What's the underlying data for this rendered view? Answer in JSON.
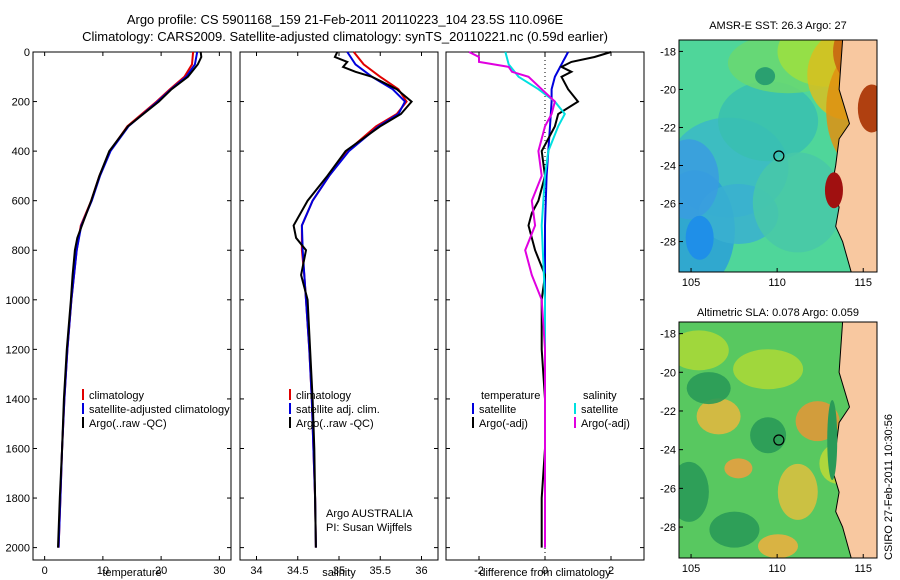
{
  "header": {
    "line1": "Argo profile: CS 5901168_159 21-Feb-2011 20110223_104 23.5S 110.096E",
    "line2": "Climatology: CARS2009. Satellite-adjusted climatology: synTS_20110221.nc (0.59d earlier)"
  },
  "credit": "CSIRO 27-Feb-2011 10:30:56",
  "colors": {
    "clim": "#e00000",
    "sat": "#0000dd",
    "argo": "#000000",
    "sal_sat": "#00e0e0",
    "sal_argo": "#e000e0"
  },
  "chart_data": [
    {
      "type": "line",
      "panel": "temperature",
      "xlabel": "temperature",
      "xlim": [
        -2,
        32
      ],
      "ylim": [
        2050,
        0
      ],
      "xticks": [
        0,
        10,
        20,
        30
      ],
      "yticks": [
        0,
        200,
        400,
        600,
        800,
        1000,
        1200,
        1400,
        1600,
        1800,
        2000
      ],
      "legend": [
        "climatology",
        "satellite-adjusted climatology",
        "Argo(..raw -QC)"
      ],
      "series": [
        {
          "name": "climatology",
          "color": "clim",
          "depth": [
            0,
            50,
            100,
            150,
            200,
            300,
            400,
            500,
            600,
            700,
            800,
            1000,
            1200,
            1400,
            1600,
            1800,
            2000
          ],
          "values": [
            25.5,
            25.3,
            24,
            21.5,
            19.2,
            14.2,
            11.2,
            9.4,
            8,
            6.2,
            5.5,
            4.6,
            3.9,
            3.4,
            3,
            2.7,
            2.4
          ]
        },
        {
          "name": "satellite-adjusted climatology",
          "color": "sat",
          "depth": [
            0,
            50,
            100,
            150,
            200,
            300,
            400,
            500,
            600,
            700,
            800,
            1000,
            1200,
            1400,
            1600,
            1800,
            2000
          ],
          "values": [
            26.2,
            25.8,
            24.3,
            21.7,
            19.4,
            14.4,
            11.3,
            9.5,
            8.1,
            6.3,
            5.5,
            4.6,
            3.9,
            3.4,
            3,
            2.7,
            2.4
          ]
        },
        {
          "name": "Argo(..raw -QC)",
          "color": "argo",
          "depth": [
            0,
            20,
            50,
            100,
            150,
            200,
            300,
            400,
            500,
            600,
            700,
            750,
            800,
            900,
            1000,
            1200,
            1400,
            1600,
            1800,
            2000
          ],
          "values": [
            26.8,
            26.9,
            26.3,
            24.6,
            21.8,
            19.6,
            14.3,
            11.1,
            9.4,
            8,
            6.4,
            5.6,
            5.2,
            4.8,
            4.5,
            3.8,
            3.3,
            3,
            2.6,
            2.3
          ]
        }
      ]
    },
    {
      "type": "line",
      "panel": "salinity",
      "xlabel": "salinity",
      "xlim": [
        33.8,
        36.2
      ],
      "ylim": [
        2050,
        0
      ],
      "xticks": [
        34,
        34.5,
        35,
        35.5,
        36
      ],
      "legend": [
        "climatology",
        "satellite adj. clim.",
        "Argo(..raw -QC)"
      ],
      "annotation": [
        "Argo AUSTRALIA",
        "PI: Susan Wijffels"
      ],
      "series": [
        {
          "name": "climatology",
          "color": "clim",
          "depth": [
            0,
            50,
            100,
            150,
            200,
            250,
            300,
            400,
            500,
            600,
            700,
            800,
            900,
            1000,
            1200,
            1400,
            1600,
            1800,
            2000
          ],
          "values": [
            35.18,
            35.3,
            35.5,
            35.72,
            35.82,
            35.7,
            35.45,
            35.1,
            34.88,
            34.68,
            34.55,
            34.55,
            34.58,
            34.6,
            34.64,
            34.67,
            34.69,
            34.71,
            34.72
          ]
        },
        {
          "name": "satellite adj. clim.",
          "color": "sat",
          "depth": [
            0,
            50,
            100,
            150,
            200,
            250,
            300,
            400,
            500,
            600,
            700,
            800,
            900,
            1000,
            1200,
            1400,
            1600,
            1800,
            2000
          ],
          "values": [
            35.1,
            35.2,
            35.4,
            35.65,
            35.8,
            35.72,
            35.48,
            35.12,
            34.88,
            34.68,
            34.55,
            34.56,
            34.58,
            34.6,
            34.64,
            34.67,
            34.69,
            34.71,
            34.72
          ]
        },
        {
          "name": "Argo(..raw -QC)",
          "color": "argo",
          "depth": [
            0,
            20,
            40,
            60,
            80,
            100,
            150,
            200,
            250,
            300,
            400,
            500,
            600,
            700,
            750,
            800,
            900,
            1000,
            1200,
            1400,
            1600,
            1800,
            2000
          ],
          "values": [
            34.98,
            34.95,
            35.1,
            35.05,
            35.2,
            35.4,
            35.7,
            35.88,
            35.75,
            35.5,
            35.08,
            34.86,
            34.62,
            34.45,
            34.48,
            34.6,
            34.54,
            34.62,
            34.65,
            34.68,
            34.7,
            34.71,
            34.72
          ]
        }
      ]
    },
    {
      "type": "line",
      "panel": "difference",
      "xlabel": "difference from climatology",
      "xlim": [
        -3,
        3
      ],
      "ylim": [
        2050,
        0
      ],
      "xticks": [
        -2,
        0,
        2
      ],
      "legend": [
        "temperature",
        "satellite",
        "Argo(-adj)",
        "salinity",
        "satellite",
        "Argo(-adj)"
      ],
      "series": [
        {
          "name": "temperature satellite",
          "color": "sat",
          "depth": [
            0,
            50,
            100,
            150,
            200,
            300,
            400,
            500,
            700,
            1000,
            2000
          ],
          "values": [
            0.7,
            0.5,
            0.3,
            0.2,
            0.2,
            0.15,
            0.1,
            0.05,
            0,
            0,
            0
          ]
        },
        {
          "name": "temperature Argo(-adj)",
          "color": "argo",
          "depth": [
            0,
            20,
            40,
            60,
            80,
            100,
            150,
            200,
            250,
            300,
            400,
            500,
            600,
            650,
            700,
            750,
            800,
            900,
            1000,
            1200,
            1400,
            1600,
            1800,
            2000
          ],
          "values": [
            2,
            1.5,
            0.8,
            0.5,
            0.8,
            0.5,
            0.7,
            1,
            0.4,
            0.3,
            -0.1,
            0,
            -0.2,
            -0.4,
            -0.5,
            -0.4,
            -0.3,
            0,
            -0.1,
            -0.1,
            0,
            0,
            -0.1,
            -0.1
          ]
        },
        {
          "name": "salinity satellite",
          "color": "sal_sat",
          "depth": [
            0,
            50,
            100,
            150,
            200,
            250,
            300,
            400,
            500,
            700,
            1000,
            2000
          ],
          "values": [
            -1.2,
            -1.1,
            -0.8,
            -0.2,
            0.3,
            0.6,
            0.4,
            0.1,
            0,
            -0.1,
            0,
            0
          ]
        },
        {
          "name": "salinity Argo(-adj)",
          "color": "sal_argo",
          "depth": [
            0,
            20,
            40,
            60,
            80,
            100,
            150,
            200,
            250,
            300,
            400,
            500,
            600,
            700,
            800,
            900,
            1000,
            1200,
            1400,
            1600,
            1800,
            2000
          ],
          "values": [
            -2.3,
            -2,
            -2,
            -1.1,
            -1,
            -0.5,
            -0.1,
            0.3,
            0.2,
            0,
            -0.2,
            -0.1,
            -0.4,
            -0.3,
            -0.6,
            -0.4,
            -0.1,
            0,
            0,
            0,
            0,
            0
          ]
        }
      ]
    }
  ],
  "maps": [
    {
      "title": "AMSR-E SST: 26.3 Argo: 27",
      "xticks": [
        105,
        110,
        115
      ],
      "yticks": [
        -18,
        -20,
        -22,
        -24,
        -26,
        -28
      ],
      "marker": [
        110.1,
        -23.5
      ]
    },
    {
      "title": "Altimetric SLA: 0.078 Argo: 0.059",
      "xticks": [
        105,
        110,
        115
      ],
      "yticks": [
        -18,
        -20,
        -22,
        -24,
        -26,
        -28
      ],
      "marker": [
        110.1,
        -23.5
      ]
    }
  ]
}
